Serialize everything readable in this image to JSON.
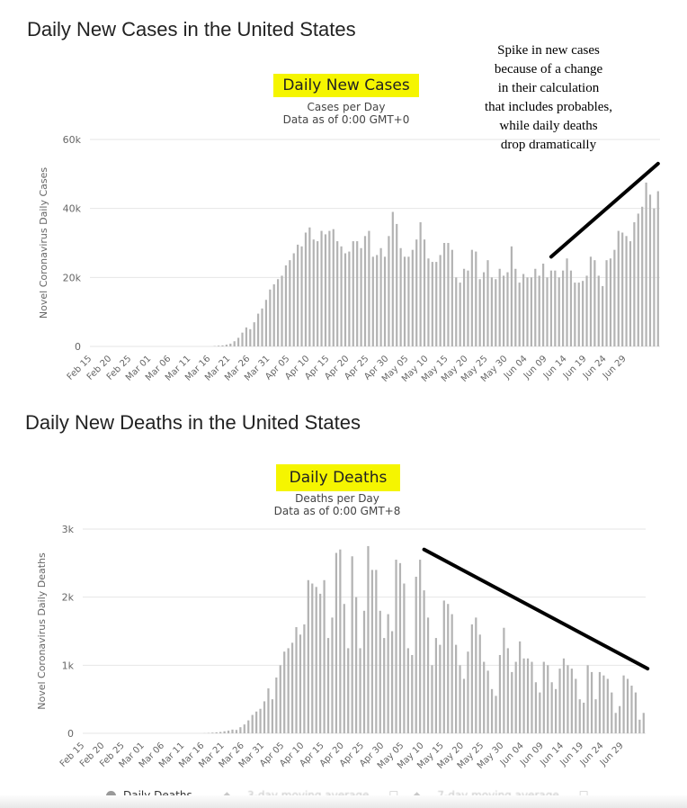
{
  "cases_section": {
    "page_title": "Daily New Cases in the United States",
    "badge": "Daily New Cases",
    "subtitle_line1": "Cases per Day",
    "subtitle_line2": "Data as of 0:00 GMT+0",
    "annotation_lines": [
      "Spike in new cases",
      "because of a change",
      "in their calculation",
      "that includes probables,",
      "while daily deaths",
      "drop dramatically"
    ]
  },
  "deaths_section": {
    "page_title": "Daily New Deaths in the United States",
    "badge": "Daily Deaths",
    "subtitle_line1": "Deaths per Day",
    "subtitle_line2": "Data as of 0:00 GMT+8"
  },
  "legend": {
    "primary": "Daily Deaths",
    "secondary_1": "3-day moving average",
    "secondary_2": "7-day moving average"
  },
  "colors": {
    "bar": "#b3b3b3",
    "highlight": "#f5f500",
    "trend_line": "#000000"
  },
  "chart_data": [
    {
      "type": "bar",
      "title": "Daily New Cases",
      "ylabel": "Novel Coronavirus Daily Cases",
      "xlabel": "",
      "ylim": [
        0,
        60000
      ],
      "yticks": [
        0,
        20000,
        40000,
        60000
      ],
      "ytick_labels": [
        "0",
        "20k",
        "40k",
        "60k"
      ],
      "xtick_labels": [
        "Feb 15",
        "Feb 20",
        "Feb 25",
        "Mar 01",
        "Mar 06",
        "Mar 11",
        "Mar 16",
        "Mar 21",
        "Mar 26",
        "Mar 31",
        "Apr 05",
        "Apr 10",
        "Apr 15",
        "Apr 20",
        "Apr 25",
        "Apr 30",
        "May 05",
        "May 10",
        "May 15",
        "May 20",
        "May 25",
        "May 30",
        "Jun 04",
        "Jun 09",
        "Jun 14",
        "Jun 19",
        "Jun 24",
        "Jun 29"
      ],
      "start_date": "Feb 15",
      "values": [
        0,
        0,
        0,
        0,
        0,
        0,
        0,
        0,
        0,
        0,
        0,
        0,
        0,
        0,
        0,
        0,
        0,
        0,
        0,
        0,
        0,
        0,
        0,
        0,
        0,
        0,
        0,
        0,
        0,
        0,
        0,
        100,
        200,
        300,
        500,
        800,
        1500,
        2500,
        4000,
        5500,
        5000,
        7000,
        9500,
        11000,
        13500,
        16500,
        18000,
        19500,
        20500,
        23500,
        25000,
        27000,
        29500,
        29000,
        33000,
        34500,
        31000,
        30500,
        33500,
        32500,
        33500,
        34000,
        30500,
        29000,
        27000,
        27500,
        30500,
        30500,
        28500,
        32000,
        33500,
        26000,
        26500,
        28500,
        26000,
        32000,
        39000,
        35500,
        28500,
        26000,
        26000,
        28000,
        31000,
        36000,
        31000,
        25500,
        24500,
        24500,
        26500,
        30000,
        30000,
        28000,
        20000,
        18500,
        22500,
        22000,
        28000,
        27500,
        19500,
        21500,
        25000,
        20000,
        19500,
        22500,
        20500,
        21500,
        29000,
        22500,
        18500,
        21000,
        20000,
        20000,
        22500,
        20500,
        24000,
        20000,
        22000,
        22000,
        20000,
        22000,
        25500,
        22000,
        18500,
        18500,
        19000,
        20500,
        26000,
        25000,
        20500,
        17500,
        25000,
        25500,
        28000,
        33500,
        33000,
        32000,
        30500,
        36000,
        38500,
        40500,
        47500,
        44000,
        40000,
        45000
      ]
    },
    {
      "type": "bar",
      "title": "Daily Deaths",
      "ylabel": "Novel Coronavirus Daily Deaths",
      "xlabel": "",
      "ylim": [
        0,
        3000
      ],
      "yticks": [
        0,
        1000,
        2000,
        3000
      ],
      "ytick_labels": [
        "0",
        "1k",
        "2k",
        "3k"
      ],
      "xtick_labels": [
        "Feb 15",
        "Feb 20",
        "Feb 25",
        "Mar 01",
        "Mar 06",
        "Mar 11",
        "Mar 16",
        "Mar 21",
        "Mar 26",
        "Mar 31",
        "Apr 05",
        "Apr 10",
        "Apr 15",
        "Apr 20",
        "Apr 25",
        "Apr 30",
        "May 05",
        "May 10",
        "May 15",
        "May 20",
        "May 25",
        "May 30",
        "Jun 04",
        "Jun 09",
        "Jun 14",
        "Jun 19",
        "Jun 24",
        "Jun 29"
      ],
      "start_date": "Feb 15",
      "values": [
        0,
        0,
        0,
        0,
        0,
        0,
        0,
        0,
        0,
        0,
        0,
        0,
        0,
        0,
        0,
        0,
        0,
        0,
        0,
        0,
        0,
        0,
        0,
        0,
        0,
        0,
        0,
        0,
        0,
        0,
        2,
        5,
        10,
        15,
        20,
        30,
        40,
        55,
        50,
        90,
        130,
        190,
        270,
        320,
        360,
        470,
        660,
        500,
        820,
        1000,
        1200,
        1250,
        1330,
        1560,
        1450,
        1600,
        2250,
        2200,
        2150,
        2050,
        2250,
        1400,
        1700,
        2650,
        2700,
        1900,
        1250,
        2600,
        2000,
        1250,
        1800,
        2750,
        2400,
        2400,
        1800,
        1400,
        1750,
        1500,
        2550,
        2500,
        2200,
        1250,
        1150,
        2300,
        2550,
        2100,
        1700,
        1000,
        1400,
        1300,
        1950,
        1900,
        1750,
        1300,
        1000,
        800,
        1200,
        1600,
        1700,
        1450,
        1050,
        920,
        650,
        550,
        1150,
        1550,
        1250,
        900,
        1050,
        1350,
        1100,
        1100,
        1050,
        750,
        600,
        1050,
        1000,
        750,
        650,
        950,
        1100,
        1000,
        950,
        800,
        500,
        450,
        1000,
        900,
        500,
        900,
        850,
        800,
        600,
        300,
        400,
        850,
        800,
        700,
        600,
        200,
        300
      ]
    }
  ]
}
